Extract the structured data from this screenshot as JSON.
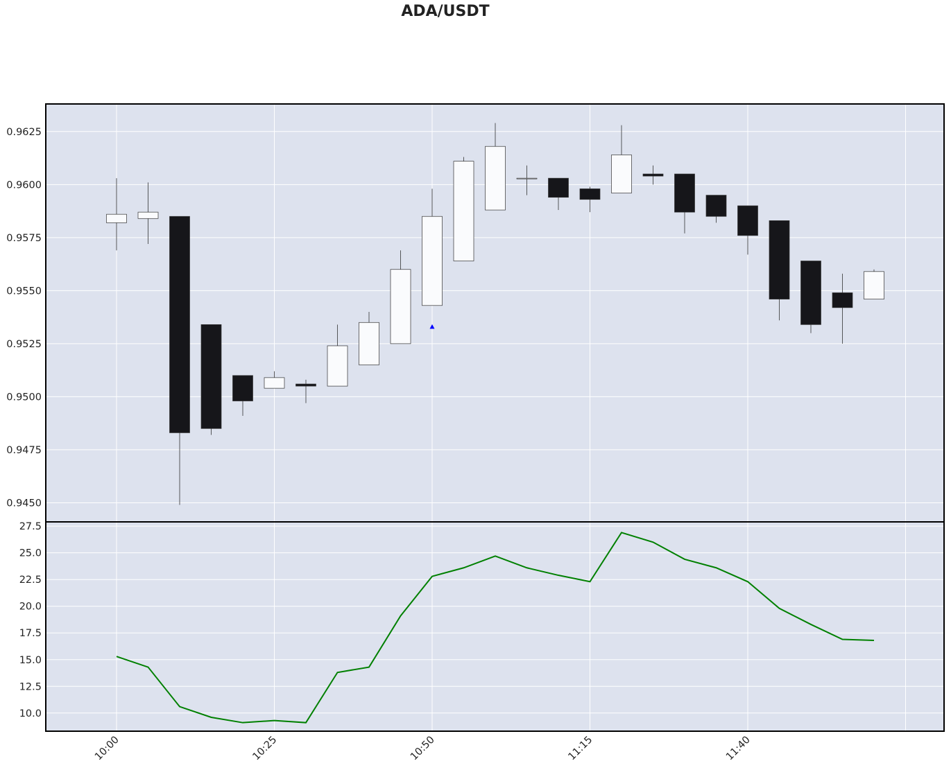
{
  "chart_data": {
    "type": "candlestick",
    "title": "ADA/USDT",
    "x_tick_labels": [
      "10:00",
      "10:25",
      "10:50",
      "11:15",
      "11:40"
    ],
    "colors": {
      "background": "#ffffff",
      "panel": "#dde2ee",
      "grid": "#ffffff",
      "up_body": "#fafbfd",
      "down_body": "#16161a",
      "wick": "#333333",
      "indicator_line": "#008000",
      "marker": "#0000ff"
    },
    "candles": [
      {
        "time": "10:00",
        "open": 0.9582,
        "high": 0.9603,
        "low": 0.9569,
        "close": 0.9586
      },
      {
        "time": "10:05",
        "open": 0.9584,
        "high": 0.9601,
        "low": 0.9572,
        "close": 0.9587
      },
      {
        "time": "10:10",
        "open": 0.9585,
        "high": 0.9585,
        "low": 0.9449,
        "close": 0.9483
      },
      {
        "time": "10:15",
        "open": 0.9534,
        "high": 0.9534,
        "low": 0.9482,
        "close": 0.9485
      },
      {
        "time": "10:20",
        "open": 0.951,
        "high": 0.951,
        "low": 0.9491,
        "close": 0.9498
      },
      {
        "time": "10:25",
        "open": 0.9504,
        "high": 0.9512,
        "low": 0.9504,
        "close": 0.9509
      },
      {
        "time": "10:30",
        "open": 0.9506,
        "high": 0.9508,
        "low": 0.9497,
        "close": 0.9505
      },
      {
        "time": "10:35",
        "open": 0.9505,
        "high": 0.9534,
        "low": 0.9505,
        "close": 0.9524
      },
      {
        "time": "10:40",
        "open": 0.9515,
        "high": 0.954,
        "low": 0.9515,
        "close": 0.9535
      },
      {
        "time": "10:45",
        "open": 0.9525,
        "high": 0.9569,
        "low": 0.9525,
        "close": 0.956
      },
      {
        "time": "10:50",
        "open": 0.9543,
        "high": 0.9598,
        "low": 0.9543,
        "close": 0.9585
      },
      {
        "time": "10:55",
        "open": 0.9564,
        "high": 0.9613,
        "low": 0.9564,
        "close": 0.9611
      },
      {
        "time": "11:00",
        "open": 0.9588,
        "high": 0.9629,
        "low": 0.9588,
        "close": 0.9618
      },
      {
        "time": "11:05",
        "open": 0.9603,
        "high": 0.9609,
        "low": 0.9595,
        "close": 0.9603
      },
      {
        "time": "11:10",
        "open": 0.9603,
        "high": 0.9603,
        "low": 0.9588,
        "close": 0.9594
      },
      {
        "time": "11:15",
        "open": 0.9598,
        "high": 0.9599,
        "low": 0.9587,
        "close": 0.9593
      },
      {
        "time": "11:20",
        "open": 0.9596,
        "high": 0.9628,
        "low": 0.9596,
        "close": 0.9614
      },
      {
        "time": "11:25",
        "open": 0.9605,
        "high": 0.9609,
        "low": 0.96,
        "close": 0.9604
      },
      {
        "time": "11:30",
        "open": 0.9605,
        "high": 0.9605,
        "low": 0.9577,
        "close": 0.9587
      },
      {
        "time": "11:35",
        "open": 0.9595,
        "high": 0.9595,
        "low": 0.9582,
        "close": 0.9585
      },
      {
        "time": "11:40",
        "open": 0.959,
        "high": 0.959,
        "low": 0.9567,
        "close": 0.9576
      },
      {
        "time": "11:45",
        "open": 0.9583,
        "high": 0.9583,
        "low": 0.9536,
        "close": 0.9546
      },
      {
        "time": "11:50",
        "open": 0.9564,
        "high": 0.9564,
        "low": 0.953,
        "close": 0.9534
      },
      {
        "time": "11:55",
        "open": 0.9549,
        "high": 0.9558,
        "low": 0.9525,
        "close": 0.9542
      },
      {
        "time": "12:00",
        "open": 0.9546,
        "high": 0.956,
        "low": 0.9546,
        "close": 0.9559
      }
    ],
    "price_axis": {
      "ylim": [
        0.9441,
        0.9638
      ],
      "ticks": [
        "0.9450",
        "0.9475",
        "0.9500",
        "0.9525",
        "0.9550",
        "0.9575",
        "0.9600",
        "0.9625"
      ]
    },
    "markers": [
      {
        "time": "10:50",
        "price": 0.9533,
        "shape": "triangle-up"
      }
    ],
    "indicator": {
      "values": [
        15.3,
        14.3,
        10.6,
        9.6,
        9.1,
        9.3,
        9.1,
        13.8,
        14.3,
        19.1,
        22.8,
        23.6,
        24.7,
        23.6,
        22.9,
        22.3,
        26.9,
        26.0,
        24.4,
        23.6,
        22.3,
        19.8,
        18.3,
        16.9,
        16.8
      ],
      "ylim": [
        8.3,
        27.9
      ],
      "ticks": [
        "10.0",
        "12.5",
        "15.0",
        "17.5",
        "20.0",
        "22.5",
        "25.0",
        "27.5"
      ]
    }
  }
}
